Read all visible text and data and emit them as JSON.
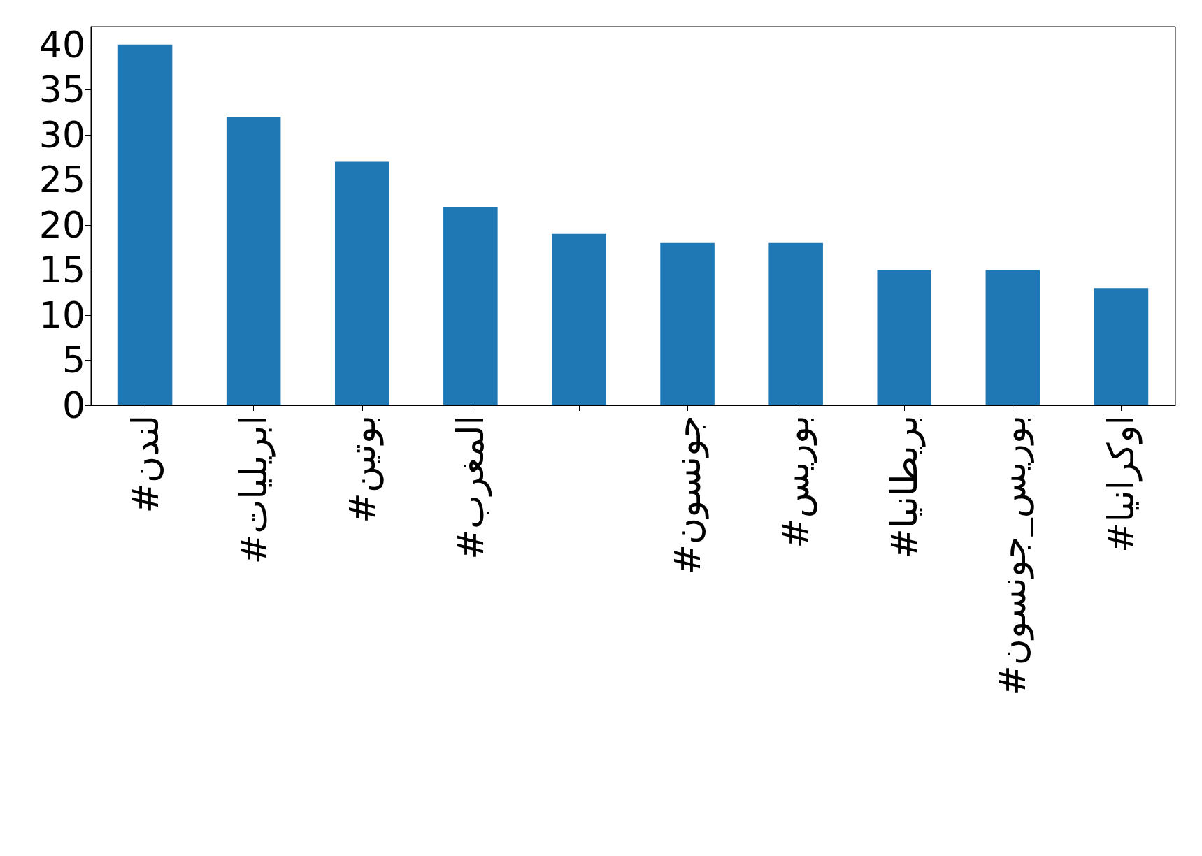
{
  "chart_data": {
    "type": "bar",
    "categories": [
      "#لندن",
      "#ابريليات",
      "#بوتين",
      "#المغرب",
      null,
      "#جونسون",
      "#بوريس",
      "#بريطانيا",
      "#بوريس_جونسون",
      "#اوكرانيا"
    ],
    "values": [
      40,
      32,
      27,
      22,
      19,
      18,
      18,
      15,
      15,
      13
    ],
    "color": "#1f77b4",
    "ylim": [
      0,
      42
    ],
    "yticks": [
      0,
      5,
      10,
      15,
      20,
      25,
      30,
      35,
      40
    ],
    "grid": false
  }
}
